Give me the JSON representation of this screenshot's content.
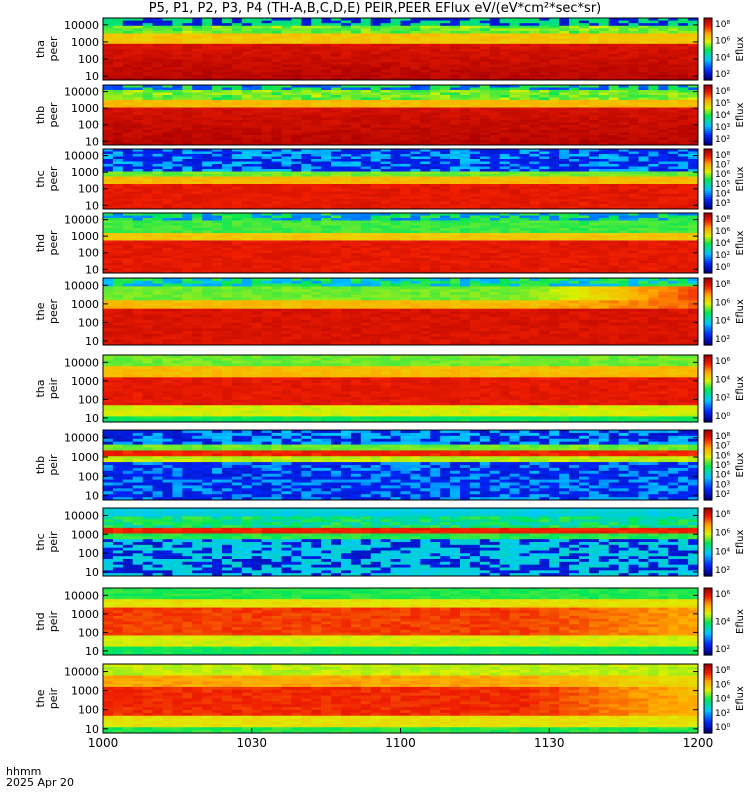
{
  "title": "P5, P1, P2, P3, P4 (TH-A,B,C,D,E) PEIR,PEER EFlux eV/(eV*cm²*sec*sr)",
  "footer": {
    "line1": "hhmm",
    "line2": "2025 Apr 20"
  },
  "chart_data": {
    "type": "heatmap",
    "x_ticks": [
      "1000",
      "1030",
      "1100",
      "1130",
      "1200"
    ],
    "x_range": [
      "10:00",
      "12:00"
    ],
    "colorbar_label": "Eflux",
    "panels": [
      {
        "probe": "tha",
        "species": "peer",
        "y_ticks": [
          "10",
          "100",
          "1000",
          "10000"
        ],
        "cbar_ticks": [
          "10⁸",
          "10⁶",
          "10⁴",
          "10²"
        ],
        "dominant": "red/yellow"
      },
      {
        "probe": "thb",
        "species": "peer",
        "y_ticks": [
          "10",
          "100",
          "1000",
          "10000"
        ],
        "cbar_ticks": [
          "10⁶",
          "10⁵",
          "10⁴",
          "10³",
          "10²"
        ],
        "dominant": "red"
      },
      {
        "probe": "thc",
        "species": "peer",
        "y_ticks": [
          "10",
          "100",
          "1000",
          "10000"
        ],
        "cbar_ticks": [
          "10⁸",
          "10⁷",
          "10⁶",
          "10⁵",
          "10⁴",
          "10³"
        ],
        "dominant": "red band, blue background"
      },
      {
        "probe": "thd",
        "species": "peer",
        "y_ticks": [
          "10",
          "100",
          "1000",
          "10000"
        ],
        "cbar_ticks": [
          "10⁸",
          "10⁶",
          "10⁴",
          "10²",
          "10⁰"
        ],
        "dominant": "red/yellow"
      },
      {
        "probe": "the",
        "species": "peer",
        "y_ticks": [
          "10",
          "100",
          "1000",
          "10000"
        ],
        "cbar_ticks": [
          "10⁸",
          "10⁶",
          "10⁴",
          "10²"
        ],
        "dominant": "red/yellow"
      },
      {
        "probe": "tha",
        "species": "peir",
        "y_ticks": [
          "10",
          "100",
          "1000",
          "10000"
        ],
        "cbar_ticks": [
          "10⁶",
          "10⁴",
          "10²",
          "10⁰"
        ],
        "dominant": "red/yellow"
      },
      {
        "probe": "thb",
        "species": "peir",
        "y_ticks": [
          "10",
          "100",
          "1000",
          "10000"
        ],
        "cbar_ticks": [
          "10⁸",
          "10⁷",
          "10⁶",
          "10⁵",
          "10⁴",
          "10³",
          "10²"
        ],
        "dominant": "blue with red band"
      },
      {
        "probe": "thc",
        "species": "peir",
        "y_ticks": [
          "10",
          "100",
          "1000",
          "10000"
        ],
        "cbar_ticks": [
          "10⁸",
          "10⁶",
          "10⁴",
          "10²"
        ],
        "dominant": "green/cyan with red band"
      },
      {
        "probe": "thd",
        "species": "peir",
        "y_ticks": [
          "10",
          "100",
          "1000",
          "10000"
        ],
        "cbar_ticks": [
          "10⁶",
          "10⁴",
          "10²"
        ],
        "dominant": "red/yellow"
      },
      {
        "probe": "the",
        "species": "peir",
        "y_ticks": [
          "10",
          "100",
          "1000",
          "10000"
        ],
        "cbar_ticks": [
          "10⁸",
          "10⁶",
          "10⁴",
          "10²",
          "10⁰"
        ],
        "dominant": "red/yellow"
      }
    ],
    "grid": false
  }
}
